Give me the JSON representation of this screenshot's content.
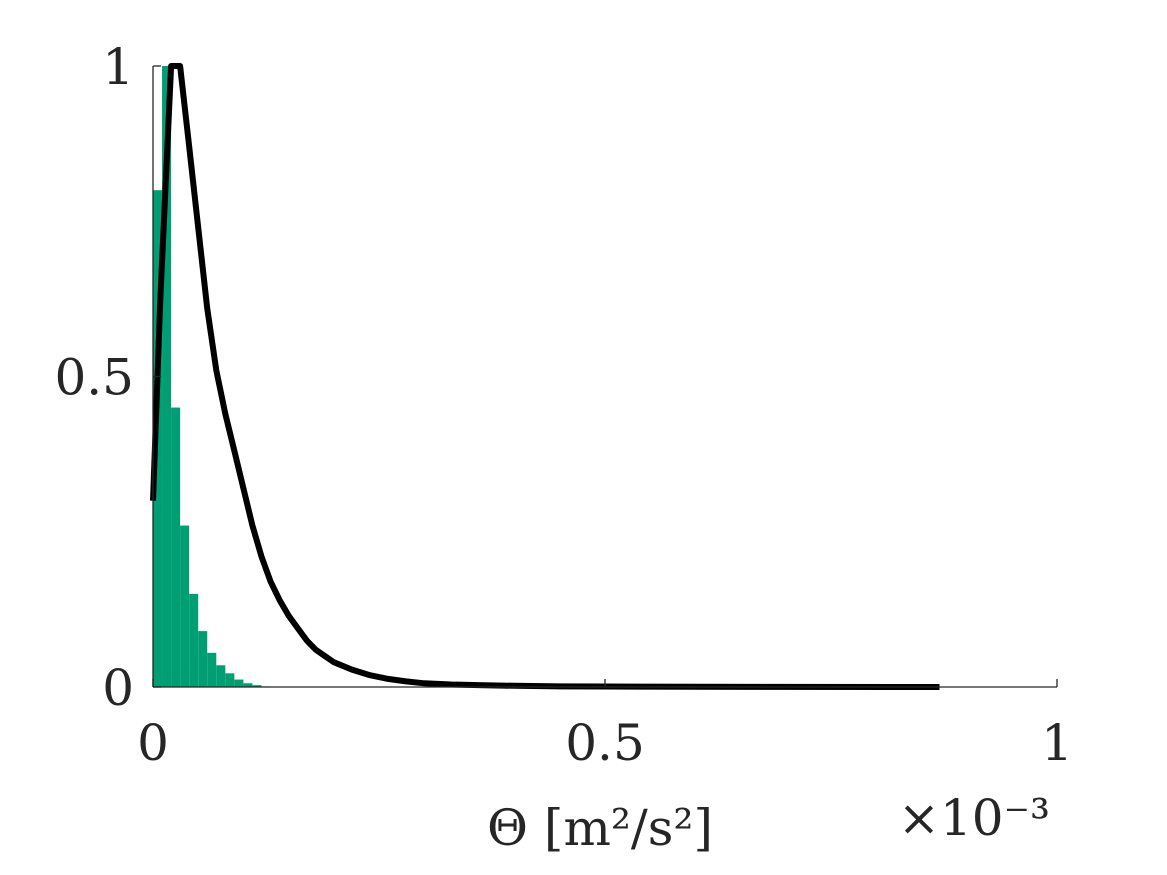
{
  "chart_data": {
    "type": "bar",
    "title": "",
    "xlabel": "Θ [m²/s²]",
    "ylabel": "",
    "x_multiplier_label": "×10⁻³",
    "xlim": [
      0,
      1.0
    ],
    "ylim": [
      0,
      1
    ],
    "x_ticks": [
      0,
      0.5,
      1
    ],
    "x_tick_labels": [
      "0",
      "0.5",
      "1"
    ],
    "y_ticks": [
      0,
      0.5,
      1
    ],
    "y_tick_labels": [
      "0",
      "0.5",
      "1"
    ],
    "grid": false,
    "histogram": {
      "color": "#009E73",
      "bin_width": 0.01,
      "bin_left_edges": [
        0.0,
        0.01,
        0.02,
        0.03,
        0.04,
        0.05,
        0.06,
        0.07,
        0.08,
        0.09,
        0.1,
        0.11,
        0.12
      ],
      "values": [
        0.8,
        1.0,
        0.45,
        0.26,
        0.15,
        0.09,
        0.055,
        0.035,
        0.022,
        0.012,
        0.006,
        0.003,
        0.001
      ]
    },
    "series": [
      {
        "type": "line",
        "color": "#000000",
        "x": [
          0.0,
          0.008,
          0.02,
          0.03,
          0.04,
          0.05,
          0.06,
          0.07,
          0.08,
          0.09,
          0.1,
          0.11,
          0.12,
          0.13,
          0.14,
          0.15,
          0.16,
          0.17,
          0.18,
          0.19,
          0.2,
          0.22,
          0.24,
          0.26,
          0.28,
          0.3,
          0.33,
          0.36,
          0.4,
          0.45,
          0.5,
          0.6,
          0.7,
          0.87
        ],
        "y": [
          0.3,
          0.62,
          1.0,
          1.0,
          0.87,
          0.74,
          0.61,
          0.51,
          0.44,
          0.38,
          0.32,
          0.26,
          0.21,
          0.17,
          0.14,
          0.115,
          0.095,
          0.075,
          0.06,
          0.05,
          0.04,
          0.028,
          0.019,
          0.013,
          0.009,
          0.006,
          0.004,
          0.003,
          0.002,
          0.001,
          0.0008,
          0.0004,
          0.0002,
          0.0
        ]
      }
    ]
  }
}
